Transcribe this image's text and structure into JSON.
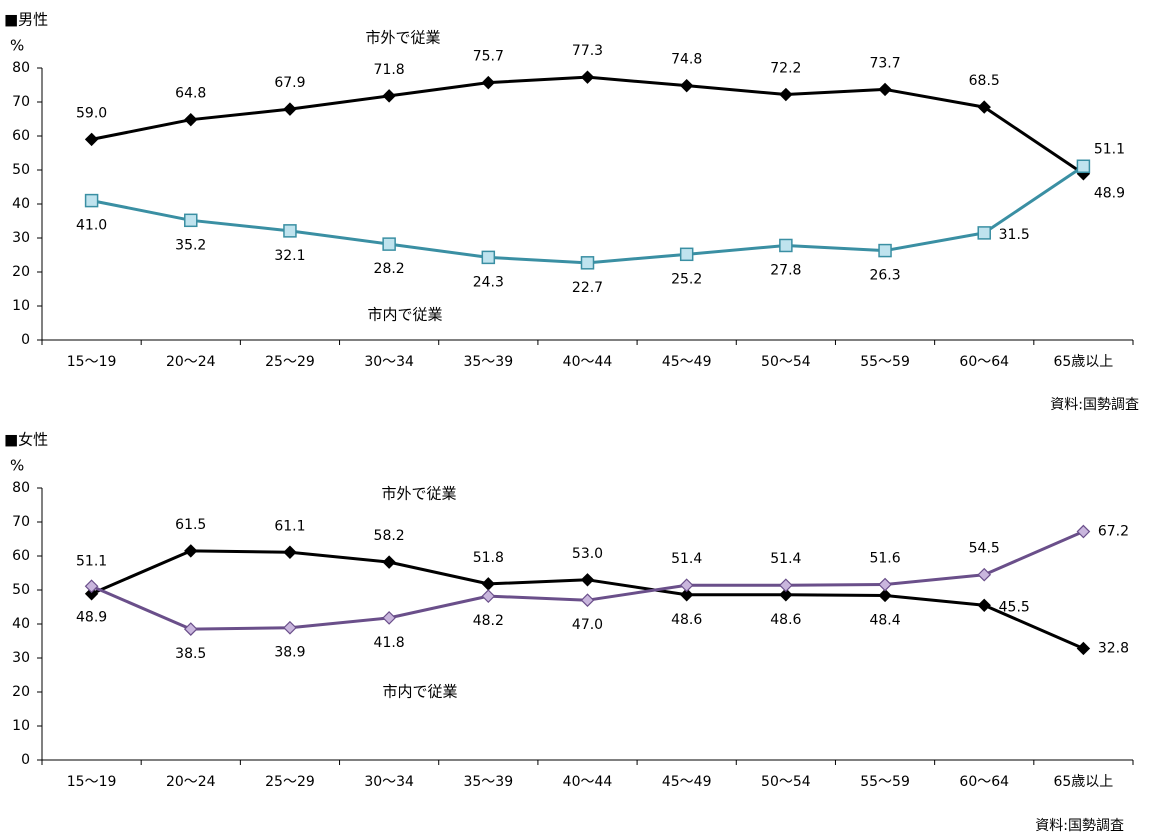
{
  "chart_data": [
    {
      "type": "line",
      "title": "■男性",
      "ylabel": "%",
      "ylim": [
        0,
        80
      ],
      "yticks": [
        0,
        10,
        20,
        30,
        40,
        50,
        60,
        70,
        80
      ],
      "categories": [
        "15～19",
        "20～24",
        "25～29",
        "30～34",
        "35～39",
        "40～44",
        "45～49",
        "50～54",
        "55～59",
        "60～64",
        "65歳以上"
      ],
      "series": [
        {
          "name": "市外で従業",
          "color": "#000000",
          "marker": "diamond-filled",
          "values": [
            59.0,
            64.8,
            67.9,
            71.8,
            75.7,
            77.3,
            74.8,
            72.2,
            73.7,
            68.5,
            48.9
          ],
          "labels": [
            "59.0",
            "64.8",
            "67.9",
            "71.8",
            "75.7",
            "77.3",
            "74.8",
            "72.2",
            "73.7",
            "68.5",
            "48.9"
          ]
        },
        {
          "name": "市内で従業",
          "color": "#3a8fa3",
          "marker_fill": "#bfe3ee",
          "marker": "square",
          "values": [
            41.0,
            35.2,
            32.1,
            28.2,
            24.3,
            22.7,
            25.2,
            27.8,
            26.3,
            31.5,
            51.1
          ],
          "labels": [
            "41.0",
            "35.2",
            "32.1",
            "28.2",
            "24.3",
            "22.7",
            "25.2",
            "27.8",
            "26.3",
            "31.5",
            "51.1"
          ]
        }
      ],
      "source": "資料:国勢調査",
      "grid": false
    },
    {
      "type": "line",
      "title": "■女性",
      "ylabel": "%",
      "ylim": [
        0,
        80
      ],
      "yticks": [
        0,
        10,
        20,
        30,
        40,
        50,
        60,
        70,
        80
      ],
      "categories": [
        "15～19",
        "20～24",
        "25～29",
        "30～34",
        "35～39",
        "40～44",
        "45～49",
        "50～54",
        "55～59",
        "60～64",
        "65歳以上"
      ],
      "series": [
        {
          "name": "市外で従業",
          "color": "#000000",
          "marker": "diamond-filled",
          "values": [
            48.9,
            61.5,
            61.1,
            58.2,
            51.8,
            53.0,
            48.6,
            48.6,
            48.4,
            45.5,
            32.8
          ],
          "labels": [
            "48.9",
            "61.5",
            "61.1",
            "58.2",
            "51.8",
            "53.0",
            "48.6",
            "48.6",
            "48.4",
            "45.5",
            "32.8"
          ]
        },
        {
          "name": "市内で従業",
          "color": "#6a4f8a",
          "marker_fill": "#c9b6dd",
          "marker": "diamond-open",
          "values": [
            51.1,
            38.5,
            38.9,
            41.8,
            48.2,
            47.0,
            51.4,
            51.4,
            51.6,
            54.5,
            67.2
          ],
          "labels": [
            "51.1",
            "38.5",
            "38.9",
            "41.8",
            "48.2",
            "47.0",
            "51.4",
            "51.4",
            "51.6",
            "54.5",
            "67.2"
          ]
        }
      ],
      "source": "資料:国勢調査",
      "grid": false
    }
  ]
}
